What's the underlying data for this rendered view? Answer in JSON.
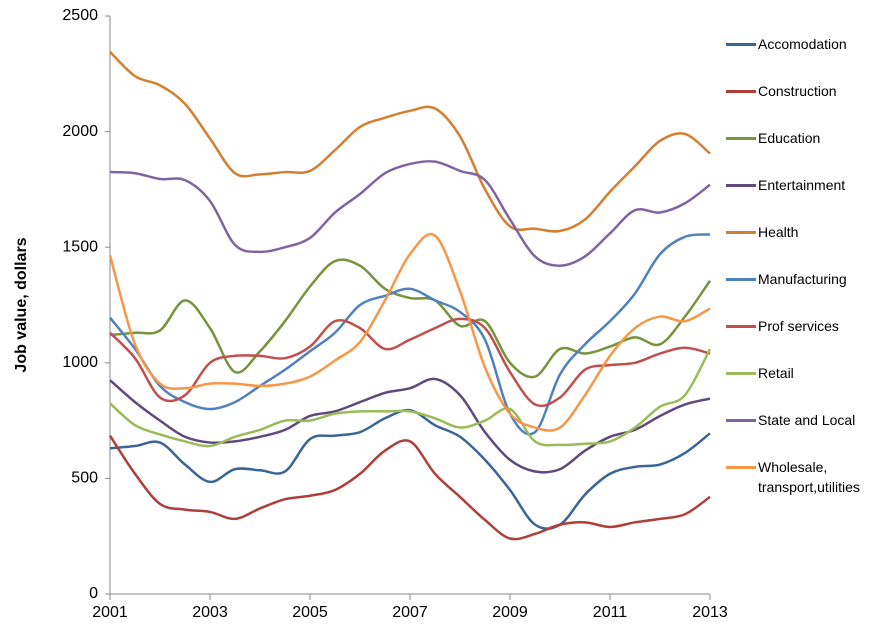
{
  "chart_data": {
    "type": "line",
    "ylabel": "Job value, dollars",
    "x": [
      2001,
      2001.5,
      2002,
      2002.5,
      2003,
      2003.5,
      2004,
      2004.5,
      2005,
      2005.5,
      2006,
      2006.5,
      2007,
      2007.5,
      2008,
      2008.5,
      2009,
      2009.5,
      2010,
      2010.5,
      2011,
      2011.5,
      2012,
      2012.5,
      2013
    ],
    "xlim": [
      2001,
      2013
    ],
    "xticks": [
      2001,
      2003,
      2005,
      2007,
      2009,
      2011,
      2013
    ],
    "ylim": [
      0,
      2500
    ],
    "yticks": [
      0,
      500,
      1000,
      1500,
      2000,
      2500
    ],
    "legend": "right",
    "series": [
      {
        "name": "Accomodation",
        "color": "#3a6595",
        "values": [
          630,
          640,
          655,
          560,
          485,
          540,
          535,
          530,
          670,
          685,
          700,
          760,
          795,
          730,
          680,
          580,
          450,
          300,
          300,
          430,
          520,
          550,
          560,
          610,
          695
        ]
      },
      {
        "name": "Construction",
        "color": "#b03e38",
        "values": [
          685,
          520,
          390,
          365,
          355,
          325,
          370,
          410,
          425,
          450,
          520,
          620,
          660,
          520,
          420,
          320,
          240,
          260,
          300,
          310,
          290,
          310,
          325,
          345,
          420
        ]
      },
      {
        "name": "Education",
        "color": "#77933c",
        "values": [
          1120,
          1130,
          1140,
          1270,
          1150,
          960,
          1050,
          1180,
          1330,
          1440,
          1420,
          1320,
          1280,
          1270,
          1160,
          1180,
          1000,
          940,
          1060,
          1040,
          1070,
          1110,
          1080,
          1200,
          1355
        ]
      },
      {
        "name": "Entertainment",
        "color": "#604a7b",
        "values": [
          925,
          830,
          750,
          680,
          655,
          660,
          680,
          710,
          770,
          790,
          830,
          870,
          890,
          930,
          860,
          700,
          580,
          530,
          540,
          620,
          680,
          710,
          770,
          820,
          845
        ]
      },
      {
        "name": "Health",
        "color": "#d27f2f",
        "values": [
          2345,
          2240,
          2200,
          2120,
          1970,
          1820,
          1815,
          1825,
          1830,
          1920,
          2020,
          2060,
          2090,
          2100,
          1980,
          1750,
          1590,
          1580,
          1570,
          1620,
          1740,
          1850,
          1960,
          1990,
          1905
        ]
      },
      {
        "name": "Manufacturing",
        "color": "#4f81bd",
        "values": [
          1195,
          1060,
          900,
          830,
          800,
          830,
          900,
          970,
          1050,
          1130,
          1250,
          1290,
          1320,
          1270,
          1220,
          1100,
          780,
          700,
          950,
          1080,
          1180,
          1300,
          1470,
          1545,
          1555
        ]
      },
      {
        "name": "Prof services",
        "color": "#c0504d",
        "values": [
          1130,
          1020,
          850,
          860,
          1000,
          1030,
          1030,
          1020,
          1070,
          1180,
          1150,
          1060,
          1100,
          1150,
          1190,
          1150,
          960,
          820,
          850,
          970,
          990,
          1000,
          1040,
          1065,
          1040
        ]
      },
      {
        "name": "Retail",
        "color": "#9bbb59",
        "values": [
          825,
          730,
          690,
          660,
          640,
          680,
          710,
          750,
          750,
          780,
          790,
          790,
          790,
          760,
          720,
          750,
          800,
          660,
          645,
          650,
          660,
          720,
          810,
          860,
          1060
        ]
      },
      {
        "name": "State and Local",
        "color": "#8064a2",
        "values": [
          1825,
          1820,
          1795,
          1790,
          1700,
          1510,
          1480,
          1500,
          1540,
          1650,
          1730,
          1820,
          1860,
          1870,
          1830,
          1790,
          1620,
          1460,
          1420,
          1460,
          1560,
          1660,
          1650,
          1690,
          1770
        ]
      },
      {
        "name": "Wholesale, transport,utilities",
        "color": "#f79646",
        "values": [
          1465,
          1080,
          910,
          890,
          910,
          910,
          900,
          910,
          940,
          1010,
          1090,
          1270,
          1470,
          1550,
          1310,
          980,
          780,
          720,
          720,
          860,
          1030,
          1150,
          1200,
          1180,
          1235
        ]
      }
    ]
  }
}
